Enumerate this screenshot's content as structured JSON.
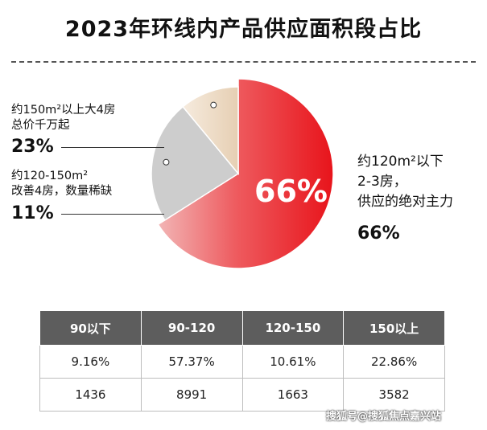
{
  "title": "2023年环线内产品供应面积段占比",
  "chart_data": {
    "type": "pie",
    "slices": [
      {
        "name": "约120m²以下 2-3房，供应的绝对主力",
        "value": 66,
        "color": "#e8141b"
      },
      {
        "name": "约150m²以上大4房 总价千万起",
        "value": 23,
        "color": "#cdcdcd"
      },
      {
        "name": "约120-150m² 改善4房，数量稀缺",
        "value": 11,
        "color": "#ecd6bd"
      }
    ]
  },
  "labels": {
    "big": {
      "line1": "约120m²以下",
      "line2": "2-3房，",
      "line3": "供应的绝对主力",
      "pct": "66%",
      "center_pct": "66%"
    },
    "large4": {
      "line1": "约150m²以上大4房",
      "line2": "总价千万起",
      "pct": "23%"
    },
    "mid4": {
      "line1": "约120-150m²",
      "line2": "改善4房，数量稀缺",
      "pct": "11%"
    }
  },
  "table": {
    "headers": [
      "90以下",
      "90-120",
      "120-150",
      "150以上"
    ],
    "rows": [
      [
        "9.16%",
        "57.37%",
        "10.61%",
        "22.86%"
      ],
      [
        "1436",
        "8991",
        "1663",
        "3582"
      ]
    ]
  },
  "watermark": "搜狐号@搜狐焦点嘉兴站"
}
